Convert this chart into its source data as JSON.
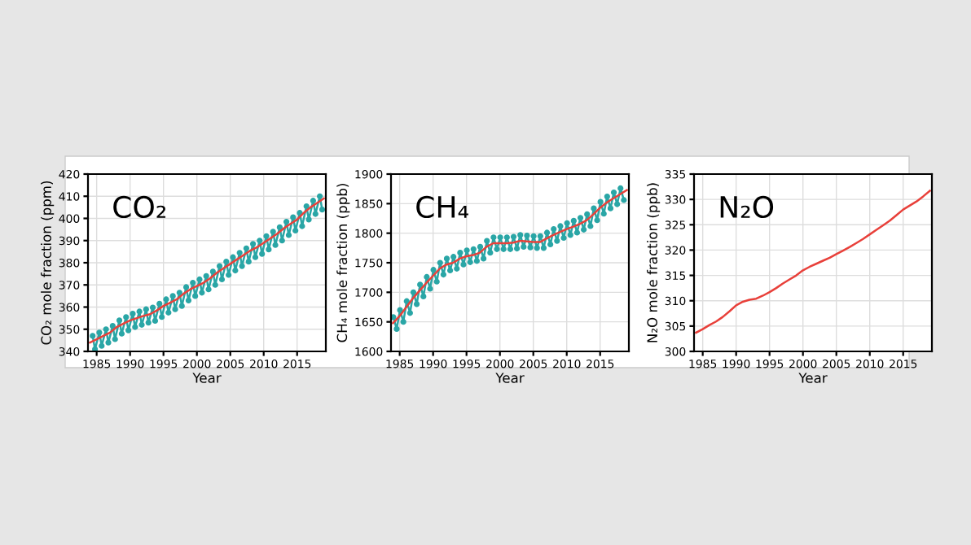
{
  "chart_data": [
    {
      "type": "line",
      "title": "CO₂",
      "xlabel": "Year",
      "ylabel": "CO₂ mole fraction (ppm)",
      "xlim": [
        1983.7,
        2019.3
      ],
      "xticks": [
        1985,
        1990,
        1995,
        2000,
        2005,
        2010,
        2015
      ],
      "ylim": [
        340,
        420
      ],
      "yticks": [
        340,
        350,
        360,
        370,
        380,
        390,
        400,
        410,
        420
      ],
      "grid": true,
      "series": [
        {
          "color": "#2aa6a6",
          "marker": "circle",
          "x": [
            1984.4,
            1984.75,
            1985.4,
            1985.75,
            1986.4,
            1986.75,
            1987.4,
            1987.75,
            1988.4,
            1988.75,
            1989.4,
            1989.75,
            1990.4,
            1990.75,
            1991.4,
            1991.75,
            1992.4,
            1992.75,
            1993.4,
            1993.75,
            1994.4,
            1994.75,
            1995.4,
            1995.75,
            1996.4,
            1996.75,
            1997.4,
            1997.75,
            1998.4,
            1998.75,
            1999.4,
            1999.75,
            2000.4,
            2000.75,
            2001.4,
            2001.75,
            2002.4,
            2002.75,
            2003.4,
            2003.75,
            2004.4,
            2004.75,
            2005.4,
            2005.75,
            2006.4,
            2006.75,
            2007.4,
            2007.75,
            2008.4,
            2008.75,
            2009.4,
            2009.75,
            2010.4,
            2010.75,
            2011.4,
            2011.75,
            2012.4,
            2012.75,
            2013.4,
            2013.75,
            2014.4,
            2014.75,
            2015.4,
            2015.75,
            2016.4,
            2016.75,
            2017.4,
            2017.75,
            2018.4,
            2018.75
          ],
          "values": [
            347,
            341,
            348.5,
            342.5,
            350,
            344,
            351.5,
            345.5,
            354,
            348,
            355.5,
            349.5,
            357,
            351,
            358,
            352,
            359,
            353,
            359.8,
            353.8,
            361.5,
            355.5,
            363.5,
            357.5,
            365,
            359,
            366.5,
            360.5,
            369,
            363,
            371,
            365,
            372.5,
            366.5,
            374,
            368,
            376,
            370,
            378.5,
            372.5,
            380.5,
            374.5,
            382.5,
            376.5,
            384.5,
            378.5,
            386.5,
            380.5,
            388.5,
            382.5,
            390,
            384,
            392,
            386,
            394,
            388,
            396,
            390,
            398.5,
            392.5,
            400.5,
            394.5,
            402.5,
            396.5,
            405.5,
            399.5,
            408,
            402,
            410,
            404
          ]
        },
        {
          "color": "#e8403a",
          "marker": "none",
          "x": [
            1984,
            1985,
            1986,
            1987,
            1988,
            1989,
            1990,
            1991,
            1992,
            1993,
            1994,
            1995,
            1996,
            1997,
            1998,
            1999,
            2000,
            2001,
            2002,
            2003,
            2004,
            2005,
            2006,
            2007,
            2008,
            2009,
            2010,
            2011,
            2012,
            2013,
            2014,
            2015,
            2016,
            2017,
            2018,
            2019
          ],
          "values": [
            344,
            345.5,
            347,
            348.5,
            351,
            352.5,
            354,
            355,
            356,
            356.8,
            358.5,
            360.5,
            362,
            363.5,
            366,
            368,
            369.5,
            371,
            373,
            375.5,
            377.5,
            379.5,
            381.5,
            383.5,
            385.5,
            387,
            389,
            391,
            393,
            395.5,
            397.5,
            399.5,
            402.5,
            405,
            407,
            409
          ]
        }
      ]
    },
    {
      "type": "line",
      "title": "CH₄",
      "xlabel": "Year",
      "ylabel": "CH₄ mole fraction (ppb)",
      "xlim": [
        1983.7,
        2019.3
      ],
      "xticks": [
        1985,
        1990,
        1995,
        2000,
        2005,
        2010,
        2015
      ],
      "ylim": [
        1600,
        1900
      ],
      "yticks": [
        1600,
        1650,
        1700,
        1750,
        1800,
        1850,
        1900
      ],
      "grid": true,
      "series": [
        {
          "color": "#2aa6a6",
          "marker": "circle",
          "x": [
            1984.05,
            1984.55,
            1985.05,
            1985.55,
            1986.05,
            1986.55,
            1987.05,
            1987.55,
            1988.05,
            1988.55,
            1989.05,
            1989.55,
            1990.05,
            1990.55,
            1991.05,
            1991.55,
            1992.05,
            1992.55,
            1993.05,
            1993.55,
            1994.05,
            1994.55,
            1995.05,
            1995.55,
            1996.05,
            1996.55,
            1997.05,
            1997.55,
            1998.05,
            1998.55,
            1999.05,
            1999.55,
            2000.05,
            2000.55,
            2001.05,
            2001.55,
            2002.05,
            2002.55,
            2003.05,
            2003.55,
            2004.05,
            2004.55,
            2005.05,
            2005.55,
            2006.05,
            2006.55,
            2007.05,
            2007.55,
            2008.05,
            2008.55,
            2009.05,
            2009.55,
            2010.05,
            2010.55,
            2011.05,
            2011.55,
            2012.05,
            2012.55,
            2013.05,
            2013.55,
            2014.05,
            2014.55,
            2015.05,
            2015.55,
            2016.05,
            2016.55,
            2017.05,
            2017.55,
            2018.05,
            2018.55
          ],
          "values": [
            1658,
            1638,
            1670,
            1650,
            1685,
            1665,
            1700,
            1680,
            1713,
            1693,
            1726,
            1706,
            1738,
            1718,
            1750,
            1730,
            1757,
            1737,
            1760,
            1740,
            1767,
            1747,
            1771,
            1751,
            1773,
            1753,
            1777,
            1757,
            1787,
            1767,
            1793,
            1773,
            1793,
            1773,
            1793,
            1773,
            1794,
            1774,
            1797,
            1777,
            1796,
            1776,
            1795,
            1775,
            1795,
            1775,
            1801,
            1781,
            1807,
            1787,
            1812,
            1792,
            1817,
            1797,
            1821,
            1801,
            1826,
            1806,
            1832,
            1812,
            1842,
            1822,
            1853,
            1833,
            1862,
            1842,
            1869,
            1849,
            1876,
            1856
          ]
        },
        {
          "color": "#e8403a",
          "marker": "none",
          "x": [
            1984,
            1985,
            1986,
            1987,
            1988,
            1989,
            1990,
            1991,
            1992,
            1993,
            1994,
            1995,
            1996,
            1997,
            1998,
            1999,
            2000,
            2001,
            2002,
            2003,
            2004,
            2005,
            2006,
            2007,
            2008,
            2009,
            2010,
            2011,
            2012,
            2013,
            2014,
            2015,
            2016,
            2017,
            2018,
            2019
          ],
          "values": [
            1648,
            1660,
            1675,
            1690,
            1703,
            1716,
            1728,
            1740,
            1747,
            1750,
            1757,
            1761,
            1763,
            1767,
            1777,
            1783,
            1783,
            1783,
            1784,
            1787,
            1786,
            1785,
            1785,
            1791,
            1797,
            1802,
            1807,
            1811,
            1816,
            1822,
            1832,
            1843,
            1852,
            1859,
            1866,
            1873
          ]
        }
      ]
    },
    {
      "type": "line",
      "title": "N₂O",
      "xlabel": "Year",
      "ylabel": "N₂O mole fraction (ppb)",
      "xlim": [
        1983.7,
        2019.3
      ],
      "xticks": [
        1985,
        1990,
        1995,
        2000,
        2005,
        2010,
        2015
      ],
      "ylim": [
        300,
        335
      ],
      "yticks": [
        300,
        305,
        310,
        315,
        320,
        325,
        330,
        335
      ],
      "grid": true,
      "series": [
        {
          "color": "#e8403a",
          "marker": "none",
          "x": [
            1984,
            1985,
            1986,
            1987,
            1988,
            1989,
            1990,
            1991,
            1992,
            1993,
            1994,
            1995,
            1996,
            1997,
            1998,
            1999,
            2000,
            2001,
            2002,
            2003,
            2004,
            2005,
            2006,
            2007,
            2008,
            2009,
            2010,
            2011,
            2012,
            2013,
            2014,
            2015,
            2016,
            2017,
            2018,
            2019
          ],
          "values": [
            303.7,
            304.4,
            305.2,
            305.9,
            306.8,
            307.9,
            309.1,
            309.8,
            310.2,
            310.4,
            311.0,
            311.7,
            312.5,
            313.4,
            314.2,
            315.0,
            316.0,
            316.7,
            317.3,
            317.9,
            318.5,
            319.2,
            319.9,
            320.6,
            321.4,
            322.2,
            323.1,
            324.0,
            324.9,
            325.8,
            326.9,
            328.0,
            328.8,
            329.6,
            330.6,
            331.7
          ]
        }
      ]
    }
  ]
}
